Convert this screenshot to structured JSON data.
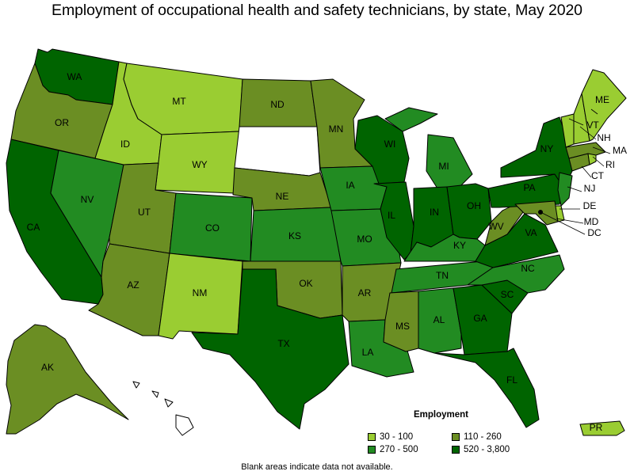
{
  "title": "Employment of occupational health and safety technicians, by state, May 2020",
  "note": "Blank areas indicate data not available.",
  "legend": {
    "title": "Employment",
    "items": [
      {
        "label": "30 - 100",
        "color": "#9acd32"
      },
      {
        "label": "110 - 260",
        "color": "#6b8e23"
      },
      {
        "label": "270 - 500",
        "color": "#228b22"
      },
      {
        "label": "520 - 3,800",
        "color": "#006400"
      }
    ]
  },
  "states": {
    "WA": {
      "label": "WA",
      "class": 3
    },
    "OR": {
      "label": "OR",
      "class": 1
    },
    "CA": {
      "label": "CA",
      "class": 3
    },
    "NV": {
      "label": "NV",
      "class": 2
    },
    "ID": {
      "label": "ID",
      "class": 0
    },
    "MT": {
      "label": "MT",
      "class": 0
    },
    "WY": {
      "label": "WY",
      "class": 0
    },
    "UT": {
      "label": "UT",
      "class": 1
    },
    "AZ": {
      "label": "AZ",
      "class": 1
    },
    "CO": {
      "label": "CO",
      "class": 2
    },
    "NM": {
      "label": "NM",
      "class": 0
    },
    "ND": {
      "label": "ND",
      "class": 1
    },
    "SD": {
      "label": "",
      "class": -1
    },
    "NE": {
      "label": "NE",
      "class": 1
    },
    "KS": {
      "label": "KS",
      "class": 2
    },
    "OK": {
      "label": "OK",
      "class": 1
    },
    "TX": {
      "label": "TX",
      "class": 3
    },
    "MN": {
      "label": "MN",
      "class": 1
    },
    "IA": {
      "label": "IA",
      "class": 2
    },
    "MO": {
      "label": "MO",
      "class": 2
    },
    "AR": {
      "label": "AR",
      "class": 1
    },
    "LA": {
      "label": "LA",
      "class": 2
    },
    "WI": {
      "label": "WI",
      "class": 3
    },
    "IL": {
      "label": "IL",
      "class": 3
    },
    "MI": {
      "label": "MI",
      "class": 2
    },
    "IN": {
      "label": "IN",
      "class": 3
    },
    "OH": {
      "label": "OH",
      "class": 3
    },
    "KY": {
      "label": "KY",
      "class": 2
    },
    "TN": {
      "label": "TN",
      "class": 2
    },
    "MS": {
      "label": "MS",
      "class": 1
    },
    "AL": {
      "label": "AL",
      "class": 2
    },
    "GA": {
      "label": "GA",
      "class": 3
    },
    "FL": {
      "label": "FL",
      "class": 3
    },
    "SC": {
      "label": "SC",
      "class": 3
    },
    "NC": {
      "label": "NC",
      "class": 2
    },
    "VA": {
      "label": "VA",
      "class": 3
    },
    "WV": {
      "label": "WV",
      "class": 1
    },
    "PA": {
      "label": "PA",
      "class": 3
    },
    "NY": {
      "label": "NY",
      "class": 3
    },
    "NJ": {
      "label": "NJ",
      "class": 2
    },
    "DE": {
      "label": "DE",
      "class": 0
    },
    "MD": {
      "label": "MD",
      "class": 1
    },
    "DC": {
      "label": "DC",
      "class": 3
    },
    "CT": {
      "label": "CT",
      "class": 1
    },
    "RI": {
      "label": "RI",
      "class": 0
    },
    "MA": {
      "label": "MA",
      "class": 1
    },
    "VT": {
      "label": "VT",
      "class": 0
    },
    "NH": {
      "label": "NH",
      "class": 0
    },
    "ME": {
      "label": "ME",
      "class": 0
    },
    "AK": {
      "label": "AK",
      "class": 1
    },
    "HI": {
      "label": "",
      "class": -1
    },
    "PR": {
      "label": "PR",
      "class": 0
    }
  }
}
